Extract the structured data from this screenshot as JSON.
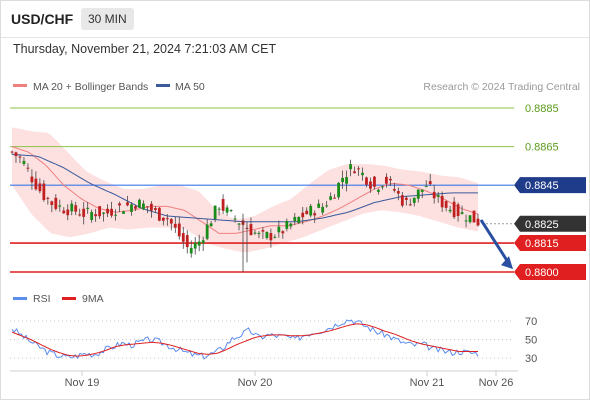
{
  "header": {
    "pair": "USD/CHF",
    "timeframe": "30 MIN",
    "datetime": "Thursday, November 21, 2024 7:21:03 AM CET"
  },
  "colors": {
    "ma20": "#f08080",
    "band_fill": "#fde0e0",
    "ma50": "#3a5a9c",
    "resistance": "#8cc34a",
    "pivot": "#3b78e7",
    "support": "#e02020",
    "last_price": "#333333",
    "rsi": "#5b8def",
    "rsi_ma": "#e02020",
    "bull": "#1a8c1a",
    "bear": "#c02020",
    "arrow": "#2a4fa0"
  },
  "chart_data": [
    {
      "type": "candlestick",
      "title": "",
      "legend": {
        "placement": "top",
        "items": [
          {
            "label": "MA 20 + Bollinger Bands",
            "color": "#f08080"
          },
          {
            "label": "MA 50",
            "color": "#3a5a9c"
          }
        ]
      },
      "credit": "Research © 2024 Trading Central",
      "x_tick_labels": [
        "Nov 19",
        "Nov 20",
        "Nov 21",
        "Nov 26"
      ],
      "ylim": [
        0.8795,
        0.8892
      ],
      "levels": [
        {
          "value": 0.8885,
          "label": "0.8885",
          "kind": "resistance"
        },
        {
          "value": 0.8865,
          "label": "0.8865",
          "kind": "resistance"
        },
        {
          "value": 0.8845,
          "label": "0.8845",
          "kind": "pivot"
        },
        {
          "value": 0.8825,
          "label": "0.8825",
          "kind": "last"
        },
        {
          "value": 0.8815,
          "label": "0.8815",
          "kind": "support"
        },
        {
          "value": 0.88,
          "label": "0.8800",
          "kind": "support"
        }
      ],
      "forecast_arrow": {
        "from": 0.8827,
        "to": 0.8801
      },
      "close_anchors": [
        0.8862,
        0.8858,
        0.8848,
        0.884,
        0.8835,
        0.8833,
        0.8832,
        0.883,
        0.8831,
        0.883,
        0.8833,
        0.8834,
        0.8836,
        0.8834,
        0.883,
        0.8828,
        0.882,
        0.8812,
        0.8815,
        0.8825,
        0.8835,
        0.883,
        0.8826,
        0.8822,
        0.8818,
        0.8819,
        0.8821,
        0.8825,
        0.8829,
        0.8832,
        0.8834,
        0.884,
        0.885,
        0.8855,
        0.885,
        0.8844,
        0.8848,
        0.8842,
        0.8835,
        0.884,
        0.8845,
        0.8838,
        0.8834,
        0.8831,
        0.8829,
        0.8826
      ],
      "ma20_anchors": [
        0.8865,
        0.8862,
        0.8855,
        0.8845,
        0.8838,
        0.8833,
        0.8831,
        0.8832,
        0.8834,
        0.8834,
        0.8832,
        0.8826,
        0.882,
        0.882,
        0.8822,
        0.8824,
        0.8824,
        0.8826,
        0.8829,
        0.8833,
        0.8838,
        0.8843,
        0.8846,
        0.8845,
        0.8842,
        0.8838,
        0.8833,
        0.883
      ],
      "ma50_anchors": [
        0.8861,
        0.886,
        0.8854,
        0.8846,
        0.884,
        0.8833,
        0.8829,
        0.8828,
        0.8827,
        0.8826,
        0.8826,
        0.8826,
        0.8828,
        0.8831,
        0.8836,
        0.8839,
        0.884,
        0.8841,
        0.8841
      ],
      "band_upper_anchors": [
        0.8875,
        0.8873,
        0.8872,
        0.8862,
        0.8852,
        0.8847,
        0.8843,
        0.8843,
        0.8845,
        0.8845,
        0.8842,
        0.8832,
        0.8827,
        0.8829,
        0.8834,
        0.8838,
        0.8846,
        0.8853,
        0.8856,
        0.8856,
        0.8855,
        0.8853,
        0.8852,
        0.885,
        0.8849,
        0.8846
      ],
      "band_lower_anchors": [
        0.8845,
        0.883,
        0.882,
        0.8818,
        0.882,
        0.8823,
        0.8822,
        0.8823,
        0.8823,
        0.8822,
        0.8815,
        0.8812,
        0.881,
        0.8812,
        0.8815,
        0.8818,
        0.8822,
        0.8826,
        0.883,
        0.8832,
        0.8831,
        0.8829,
        0.8826,
        0.8823,
        0.8821
      ]
    },
    {
      "type": "line",
      "title": "",
      "legend": {
        "placement": "top",
        "items": [
          {
            "label": "RSI",
            "color": "#5b8def"
          },
          {
            "label": "9MA",
            "color": "#e02020"
          }
        ]
      },
      "y_tick_labels": [
        "70",
        "50",
        "30"
      ],
      "ylim": [
        20,
        80
      ],
      "rsi_anchors": [
        62,
        55,
        48,
        42,
        36,
        33,
        31,
        32,
        35,
        34,
        38,
        42,
        46,
        44,
        47,
        50,
        48,
        44,
        40,
        36,
        33,
        32,
        35,
        40,
        50,
        55,
        60,
        52,
        55,
        54,
        53,
        50,
        55,
        58,
        60,
        64,
        69,
        72,
        68,
        63,
        58,
        55,
        50,
        46,
        44,
        45,
        40,
        38,
        36,
        37,
        36,
        35
      ],
      "ma_anchors": [
        58,
        54,
        50,
        45,
        40,
        36,
        33,
        32,
        33,
        35,
        38,
        42,
        44,
        45,
        46,
        47,
        46,
        44,
        41,
        38,
        35,
        34,
        35,
        39,
        44,
        48,
        52,
        54,
        55,
        55,
        54,
        54,
        55,
        57,
        59,
        62,
        65,
        67,
        66,
        63,
        59,
        56,
        52,
        48,
        45,
        43,
        41,
        39,
        37,
        37,
        37
      ]
    }
  ]
}
